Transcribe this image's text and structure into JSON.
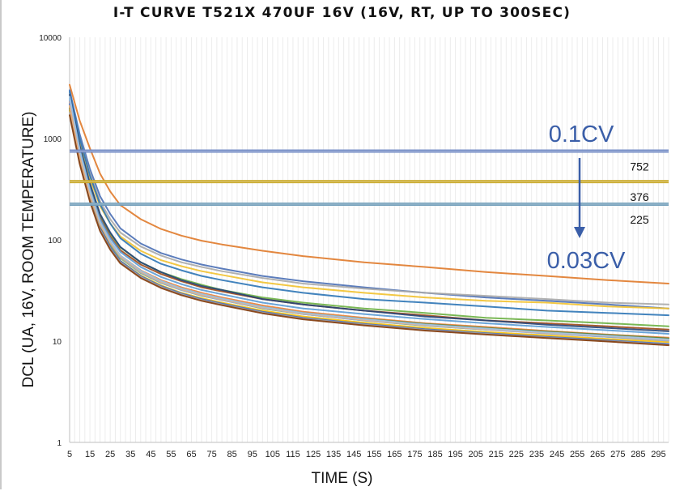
{
  "chart_data": {
    "type": "line",
    "title": "I-T CURVE T521X 470UF 16V (16V, RT, UP TO 300SEC)",
    "xlabel": "TIME (S)",
    "ylabel": "DCL (UA, 16V, ROOM TEMPERATURE)",
    "y_scale": "log",
    "ylim": [
      1,
      10000
    ],
    "xlim": [
      5,
      300
    ],
    "y_ticks": [
      "1",
      "10",
      "100",
      "1000",
      "10000"
    ],
    "x_ticks": [
      "5",
      "15",
      "25",
      "35",
      "45",
      "55",
      "65",
      "75",
      "85",
      "95",
      "105",
      "115",
      "125",
      "135",
      "145",
      "155",
      "165",
      "175",
      "185",
      "195",
      "205",
      "215",
      "225",
      "235",
      "245",
      "255",
      "265",
      "275",
      "285",
      "295"
    ],
    "grid": "vertical minor lines",
    "legend": "none",
    "series_x": [
      5,
      10,
      15,
      20,
      25,
      30,
      40,
      50,
      60,
      70,
      80,
      100,
      120,
      150,
      180,
      210,
      240,
      270,
      300
    ],
    "series": [
      {
        "color": "#e07a2a",
        "values": [
          3400,
          1500,
          800,
          450,
          300,
          220,
          160,
          128,
          110,
          98,
          90,
          78,
          69,
          60,
          54,
          48,
          44,
          40,
          37
        ]
      },
      {
        "color": "#4a6fb5",
        "values": [
          3000,
          1100,
          500,
          270,
          180,
          130,
          92,
          74,
          64,
          57,
          52,
          44,
          39,
          34,
          30,
          27,
          25,
          23,
          21
        ]
      },
      {
        "color": "#a9a9a9",
        "values": [
          2800,
          1000,
          450,
          240,
          160,
          118,
          86,
          70,
          60,
          54,
          49,
          42,
          37,
          33,
          30,
          28,
          26,
          24,
          23
        ]
      },
      {
        "color": "#f2c230",
        "values": [
          2600,
          900,
          400,
          215,
          145,
          108,
          78,
          63,
          55,
          49,
          45,
          38,
          34,
          30,
          27,
          25,
          24,
          22,
          21
        ]
      },
      {
        "color": "#2e75b6",
        "values": [
          2900,
          1000,
          430,
          225,
          145,
          104,
          73,
          58,
          50,
          44,
          40,
          34,
          30,
          26,
          24,
          22,
          20,
          19,
          18
        ]
      },
      {
        "color": "#6cb043",
        "values": [
          2400,
          800,
          340,
          175,
          115,
          84,
          60,
          48,
          41,
          36,
          32,
          27,
          24,
          21,
          19,
          17,
          16,
          15,
          14
        ]
      },
      {
        "color": "#9e4a1a",
        "values": [
          2200,
          750,
          320,
          165,
          108,
          79,
          57,
          46,
          39,
          34,
          31,
          26,
          23,
          20,
          18,
          16,
          15,
          14,
          13
        ]
      },
      {
        "color": "#264478",
        "values": [
          2700,
          850,
          360,
          180,
          118,
          85,
          60,
          48,
          40,
          35,
          32,
          26,
          23,
          20,
          17.5,
          16,
          14.5,
          13.5,
          12.5
        ]
      },
      {
        "color": "#5b9bd5",
        "values": [
          2500,
          780,
          320,
          160,
          104,
          76,
          54,
          43,
          36.5,
          32,
          29,
          24,
          21,
          18.5,
          16.5,
          15,
          13.8,
          12.8,
          11.8
        ]
      },
      {
        "color": "#ed7d31",
        "values": [
          2300,
          700,
          290,
          148,
          96,
          70,
          50,
          40,
          34,
          30,
          27,
          22.5,
          19.5,
          17,
          15,
          13.8,
          12.6,
          11.6,
          10.8
        ]
      },
      {
        "color": "#70ad47",
        "values": [
          2100,
          650,
          270,
          138,
          90,
          66,
          47,
          37.5,
          32,
          28,
          25.5,
          21,
          18.5,
          16,
          14.2,
          13,
          12,
          11,
          10.2
        ]
      },
      {
        "color": "#ffc000",
        "values": [
          1900,
          600,
          250,
          130,
          85,
          62,
          44.5,
          35.5,
          30,
          26.5,
          24,
          20,
          17.5,
          15.2,
          13.5,
          12.3,
          11.4,
          10.5,
          9.8
        ]
      },
      {
        "color": "#c55a11",
        "values": [
          2000,
          620,
          255,
          130,
          84,
          61,
          43.5,
          34.5,
          29.2,
          25.7,
          23.2,
          19.3,
          16.8,
          14.6,
          13,
          11.8,
          10.9,
          10,
          9.3
        ]
      },
      {
        "color": "#4472c4",
        "values": [
          2200,
          640,
          262,
          132,
          85,
          62,
          44,
          35,
          29.6,
          26,
          23.5,
          19.5,
          17,
          14.8,
          13.1,
          12,
          11,
          10.2,
          9.4
        ]
      },
      {
        "color": "#8faadc",
        "values": [
          2400,
          700,
          285,
          142,
          92,
          67,
          47.5,
          37.8,
          32,
          28.2,
          25.4,
          21.2,
          18.5,
          16,
          14.3,
          13,
          11.9,
          11,
          10.1
        ]
      },
      {
        "color": "#548235",
        "values": [
          2000,
          640,
          270,
          140,
          92,
          68,
          49,
          39,
          33,
          29,
          26,
          21.8,
          19,
          16.6,
          14.8,
          13.5,
          12.4,
          11.5,
          10.6
        ]
      },
      {
        "color": "#a5a5a5",
        "values": [
          1800,
          580,
          245,
          126,
          82,
          60,
          43,
          34.2,
          29,
          25.4,
          23,
          19.1,
          16.7,
          14.5,
          12.9,
          11.8,
          10.8,
          10,
          9.2
        ]
      },
      {
        "color": "#f4b183",
        "values": [
          2100,
          660,
          275,
          142,
          93,
          68,
          48.5,
          38.5,
          32.5,
          28.6,
          25.8,
          21.4,
          18.7,
          16.2,
          14.4,
          13.1,
          12.1,
          11.2,
          10.3
        ]
      },
      {
        "color": "#9dc3e6",
        "values": [
          2600,
          760,
          305,
          150,
          97,
          70,
          49.5,
          39.3,
          33.2,
          29.2,
          26.3,
          21.8,
          19,
          16.5,
          14.6,
          13.3,
          12.2,
          11.3,
          10.4
        ]
      },
      {
        "color": "#843c0c",
        "values": [
          1700,
          560,
          238,
          122,
          80,
          58.5,
          42,
          33.5,
          28.4,
          25,
          22.6,
          18.8,
          16.4,
          14.3,
          12.7,
          11.6,
          10.7,
          9.9,
          9.1
        ]
      }
    ],
    "reference_lines": [
      {
        "value": 752,
        "label": "752",
        "color": "#6f88c4"
      },
      {
        "value": 376,
        "label": "376",
        "color": "#c9a826"
      },
      {
        "value": 225,
        "label": "225",
        "color": "#6d9bb8"
      }
    ],
    "annotations": {
      "top": "0.1CV",
      "bottom": "0.03CV",
      "color": "#3a5ea8"
    }
  }
}
